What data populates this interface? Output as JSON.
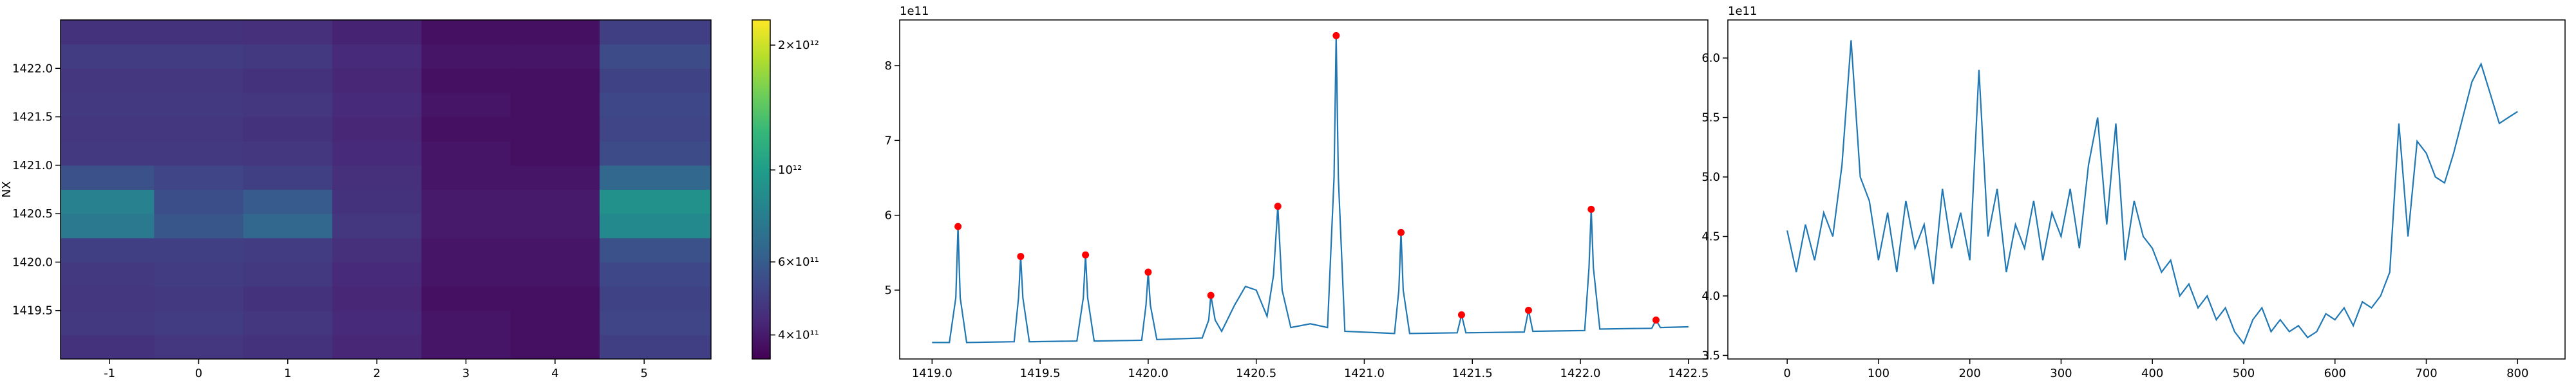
{
  "chart_data": [
    {
      "type": "heatmap",
      "ylabel": "NX",
      "xbins": [
        -1.55,
        -0.5,
        0.5,
        1.5,
        2.5,
        3.5,
        4.5,
        5.75
      ],
      "ybins": [
        1419.0,
        1419.25,
        1419.5,
        1419.75,
        1420.0,
        1420.25,
        1420.5,
        1420.75,
        1421.0,
        1421.25,
        1421.5,
        1421.75,
        1422.0,
        1422.25,
        1422.5
      ],
      "z": [
        [
          460000000000.0,
          470000000000.0,
          460000000000.0,
          430000000000.0,
          390000000000.0,
          380000000000.0,
          500000000000.0
        ],
        [
          480000000000.0,
          490000000000.0,
          470000000000.0,
          440000000000.0,
          390000000000.0,
          380000000000.0,
          520000000000.0
        ],
        [
          470000000000.0,
          480000000000.0,
          460000000000.0,
          430000000000.0,
          380000000000.0,
          380000000000.0,
          510000000000.0
        ],
        [
          480000000000.0,
          490000000000.0,
          480000000000.0,
          440000000000.0,
          390000000000.0,
          390000000000.0,
          530000000000.0
        ],
        [
          500000000000.0,
          500000000000.0,
          490000000000.0,
          450000000000.0,
          390000000000.0,
          390000000000.0,
          560000000000.0
        ],
        [
          750000000000.0,
          580000000000.0,
          650000000000.0,
          470000000000.0,
          400000000000.0,
          400000000000.0,
          850000000000.0
        ],
        [
          800000000000.0,
          550000000000.0,
          600000000000.0,
          460000000000.0,
          400000000000.0,
          400000000000.0,
          900000000000.0
        ],
        [
          560000000000.0,
          520000000000.0,
          500000000000.0,
          450000000000.0,
          390000000000.0,
          390000000000.0,
          650000000000.0
        ],
        [
          480000000000.0,
          480000000000.0,
          470000000000.0,
          440000000000.0,
          390000000000.0,
          380000000000.0,
          540000000000.0
        ],
        [
          470000000000.0,
          470000000000.0,
          460000000000.0,
          430000000000.0,
          380000000000.0,
          380000000000.0,
          520000000000.0
        ],
        [
          480000000000.0,
          480000000000.0,
          470000000000.0,
          440000000000.0,
          390000000000.0,
          380000000000.0,
          530000000000.0
        ],
        [
          470000000000.0,
          470000000000.0,
          460000000000.0,
          430000000000.0,
          380000000000.0,
          380000000000.0,
          510000000000.0
        ],
        [
          490000000000.0,
          490000000000.0,
          480000000000.0,
          440000000000.0,
          390000000000.0,
          390000000000.0,
          540000000000.0
        ],
        [
          460000000000.0,
          460000000000.0,
          450000000000.0,
          420000000000.0,
          380000000000.0,
          380000000000.0,
          500000000000.0
        ]
      ],
      "xlim": [
        -1.55,
        5.75
      ],
      "ylim": [
        1419.0,
        1422.5
      ],
      "xticks": [
        -1,
        0,
        1,
        2,
        3,
        4,
        5
      ],
      "yticks": [
        1419.5,
        {
          "value": 1420,
          "label": "1420.0"
        },
        1420.5,
        {
          "value": 1421,
          "label": "1421.0"
        },
        1421.5,
        {
          "value": 1422,
          "label": "1422.0"
        }
      ],
      "colorbar": {
        "scale": "log",
        "colormap": "viridis",
        "lim": [
          350000000000.0,
          2300000000000.0
        ],
        "ticks": [
          {
            "value": 400000000000.0,
            "label": "4×10¹¹"
          },
          {
            "value": 600000000000.0,
            "label": "6×10¹¹"
          },
          {
            "value": 1000000000000.0,
            "label": "10¹²"
          },
          {
            "value": 2000000000000.0,
            "label": "2×10¹²"
          }
        ]
      }
    },
    {
      "type": "line",
      "y_offset_label": "1e11",
      "x": [
        1419.0,
        1419.08,
        1419.11,
        1419.12,
        1419.13,
        1419.16,
        1419.38,
        1419.4,
        1419.41,
        1419.42,
        1419.45,
        1419.67,
        1419.7,
        1419.71,
        1419.72,
        1419.75,
        1419.97,
        1419.99,
        1420.0,
        1420.01,
        1420.04,
        1420.25,
        1420.28,
        1420.29,
        1420.31,
        1420.34,
        1420.4,
        1420.45,
        1420.5,
        1420.55,
        1420.58,
        1420.6,
        1420.62,
        1420.66,
        1420.75,
        1420.83,
        1420.86,
        1420.87,
        1420.88,
        1420.91,
        1421.14,
        1421.16,
        1421.17,
        1421.18,
        1421.21,
        1421.43,
        1421.45,
        1421.47,
        1421.74,
        1421.76,
        1421.78,
        1422.02,
        1422.04,
        1422.05,
        1422.06,
        1422.09,
        1422.33,
        1422.35,
        1422.37,
        1422.5
      ],
      "series": [
        {
          "color": "#1f77b4",
          "values": [
            4.3,
            4.3,
            4.9,
            5.85,
            4.9,
            4.3,
            4.31,
            4.9,
            5.45,
            4.9,
            4.31,
            4.32,
            4.9,
            5.47,
            4.9,
            4.32,
            4.33,
            4.8,
            5.24,
            4.8,
            4.34,
            4.36,
            4.6,
            4.93,
            4.6,
            4.45,
            4.8,
            5.05,
            5.0,
            4.65,
            5.2,
            6.12,
            5.0,
            4.5,
            4.55,
            4.5,
            6.5,
            8.4,
            6.5,
            4.45,
            4.42,
            5.0,
            5.77,
            5.0,
            4.42,
            4.43,
            4.67,
            4.43,
            4.44,
            4.73,
            4.45,
            4.46,
            5.3,
            6.08,
            5.3,
            4.48,
            4.49,
            4.6,
            4.5,
            4.51
          ]
        }
      ],
      "peaks": {
        "color": "#ff0000",
        "x": [
          1419.12,
          1419.41,
          1419.71,
          1420.0,
          1420.29,
          1420.6,
          1420.87,
          1421.17,
          1421.45,
          1421.76,
          1422.05,
          1422.35
        ],
        "values": [
          5.85,
          5.45,
          5.47,
          5.24,
          4.93,
          6.12,
          8.4,
          5.77,
          4.67,
          4.73,
          6.08,
          4.6
        ]
      },
      "xlim": [
        1418.85,
        1422.59
      ],
      "ylim": [
        4.08,
        8.61
      ],
      "xticks": [
        {
          "value": 1419,
          "label": "1419.0"
        },
        1419.5,
        {
          "value": 1420,
          "label": "1420.0"
        },
        1420.5,
        {
          "value": 1421,
          "label": "1421.0"
        },
        1421.5,
        {
          "value": 1422,
          "label": "1422.0"
        },
        1422.5
      ],
      "yticks": [
        5,
        6,
        7,
        8
      ]
    },
    {
      "type": "line",
      "y_offset_label": "1e11",
      "x": [
        0,
        10,
        20,
        30,
        40,
        50,
        60,
        70,
        80,
        90,
        100,
        110,
        120,
        130,
        140,
        150,
        160,
        170,
        180,
        190,
        200,
        210,
        220,
        230,
        240,
        250,
        260,
        270,
        280,
        290,
        300,
        310,
        320,
        330,
        340,
        350,
        360,
        370,
        380,
        390,
        400,
        410,
        420,
        430,
        440,
        450,
        460,
        470,
        480,
        490,
        500,
        510,
        520,
        530,
        540,
        550,
        560,
        570,
        580,
        590,
        600,
        610,
        620,
        630,
        640,
        650,
        660,
        670,
        680,
        690,
        700,
        710,
        720,
        730,
        740,
        750,
        760,
        770,
        780,
        790,
        800
      ],
      "series": [
        {
          "color": "#1f77b4",
          "values": [
            4.55,
            4.2,
            4.6,
            4.3,
            4.7,
            4.5,
            5.1,
            6.15,
            5.0,
            4.8,
            4.3,
            4.7,
            4.2,
            4.8,
            4.4,
            4.6,
            4.1,
            4.9,
            4.4,
            4.7,
            4.3,
            5.9,
            4.5,
            4.9,
            4.2,
            4.6,
            4.4,
            4.8,
            4.3,
            4.7,
            4.5,
            4.9,
            4.4,
            5.1,
            5.5,
            4.6,
            5.45,
            4.3,
            4.8,
            4.5,
            4.4,
            4.2,
            4.3,
            4.0,
            4.1,
            3.9,
            4.0,
            3.8,
            3.9,
            3.7,
            3.6,
            3.8,
            3.9,
            3.7,
            3.8,
            3.7,
            3.75,
            3.65,
            3.7,
            3.85,
            3.8,
            3.9,
            3.75,
            3.95,
            3.9,
            4.0,
            4.2,
            5.45,
            4.5,
            5.3,
            5.2,
            5.0,
            4.95,
            5.2,
            5.5,
            5.8,
            5.95,
            5.7,
            5.45,
            5.5,
            5.55
          ]
        }
      ],
      "xlim": [
        -65,
        852
      ],
      "ylim": [
        3.47,
        6.32
      ],
      "xticks": [
        0,
        100,
        200,
        300,
        400,
        500,
        600,
        700,
        800
      ],
      "yticks": [
        3.5,
        {
          "value": 4,
          "label": "4.0"
        },
        4.5,
        {
          "value": 5,
          "label": "5.0"
        },
        5.5,
        {
          "value": 6,
          "label": "6.0"
        }
      ]
    }
  ]
}
